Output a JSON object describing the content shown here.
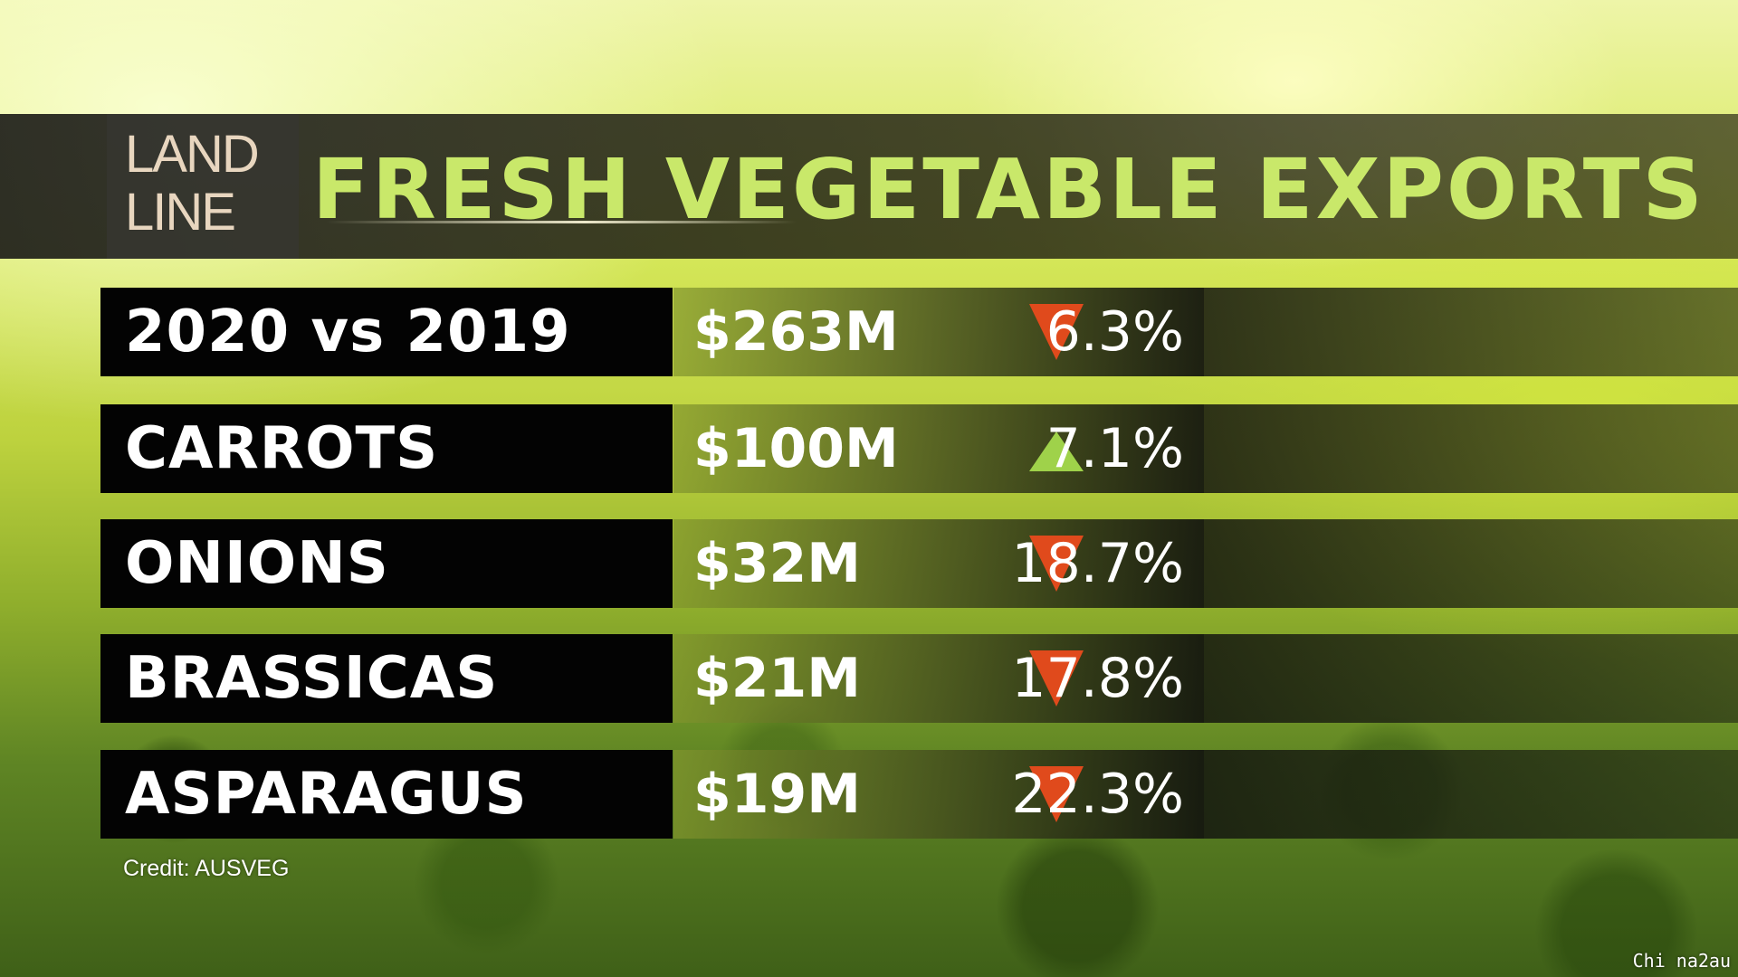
{
  "header": {
    "logo": {
      "line1": "LAND",
      "line2": "LINE"
    },
    "title": "FRESH VEGETABLE EXPORTS"
  },
  "rows": [
    {
      "label": "2020 vs 2019",
      "value": "$263M",
      "direction": "down",
      "change": "6.3%"
    },
    {
      "label": "CARROTS",
      "value": "$100M",
      "direction": "up",
      "change": "7.1%"
    },
    {
      "label": "ONIONS",
      "value": "$32M",
      "direction": "down",
      "change": "18.7%"
    },
    {
      "label": "BRASSICAS",
      "value": "$21M",
      "direction": "down",
      "change": "17.8%"
    },
    {
      "label": "ASPARAGUS",
      "value": "$19M",
      "direction": "down",
      "change": "22.3%"
    }
  ],
  "icons": {
    "down": "down-arrow-icon",
    "up": "up-arrow-icon"
  },
  "colors": {
    "title": "#c9e86a",
    "down_arrow": "#e04a1c",
    "up_arrow": "#9fd24a",
    "logo": "#e8d6bf"
  },
  "credit": "Credit: AUSVEG",
  "watermark": "Chi na2au"
}
